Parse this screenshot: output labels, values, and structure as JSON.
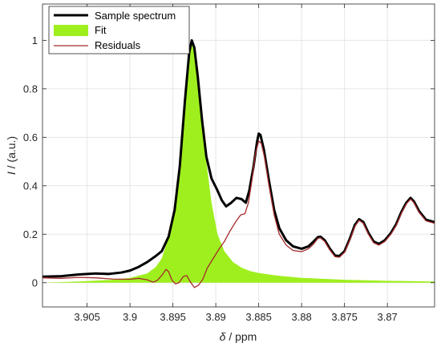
{
  "chart_data": {
    "type": "line",
    "title": "",
    "xlabel": {
      "symbol": "δ",
      "unit": " / ppm"
    },
    "ylabel": {
      "symbol": "I",
      "unit": " / (a.u.)"
    },
    "xlim": [
      3.9102,
      3.8645
    ],
    "ylim": [
      -0.1,
      1.15
    ],
    "x_reversed": true,
    "grid": true,
    "legend_position": "top-left",
    "x_ticks": [
      3.905,
      3.9,
      3.895,
      3.89,
      3.885,
      3.88,
      3.875,
      3.87
    ],
    "x_tick_labels": [
      "3.905",
      "3.9",
      "3.895",
      "3.89",
      "3.885",
      "3.88",
      "3.875",
      "3.87"
    ],
    "y_ticks": [
      0,
      0.2,
      0.4,
      0.6,
      0.8,
      1
    ],
    "y_tick_labels": [
      "0",
      "0.2",
      "0.4",
      "0.6",
      "0.8",
      "1"
    ],
    "series": [
      {
        "name": "Sample spectrum",
        "kind": "line",
        "color": "#000000",
        "points": [
          [
            3.9102,
            0.025
          ],
          [
            3.908,
            0.027
          ],
          [
            3.906,
            0.034
          ],
          [
            3.904,
            0.038
          ],
          [
            3.9025,
            0.036
          ],
          [
            3.901,
            0.042
          ],
          [
            3.9,
            0.05
          ],
          [
            3.899,
            0.065
          ],
          [
            3.898,
            0.085
          ],
          [
            3.897,
            0.11
          ],
          [
            3.8963,
            0.13
          ],
          [
            3.8955,
            0.19
          ],
          [
            3.8948,
            0.3
          ],
          [
            3.8942,
            0.48
          ],
          [
            3.8936,
            0.75
          ],
          [
            3.8931,
            0.95
          ],
          [
            3.8928,
            1.0
          ],
          [
            3.8925,
            0.97
          ],
          [
            3.8921,
            0.85
          ],
          [
            3.8916,
            0.67
          ],
          [
            3.8911,
            0.52
          ],
          [
            3.8905,
            0.43
          ],
          [
            3.8898,
            0.38
          ],
          [
            3.8893,
            0.34
          ],
          [
            3.8888,
            0.315
          ],
          [
            3.8882,
            0.33
          ],
          [
            3.8876,
            0.35
          ],
          [
            3.887,
            0.345
          ],
          [
            3.8865,
            0.33
          ],
          [
            3.8861,
            0.38
          ],
          [
            3.8856,
            0.48
          ],
          [
            3.8852,
            0.58
          ],
          [
            3.885,
            0.615
          ],
          [
            3.8848,
            0.61
          ],
          [
            3.8844,
            0.55
          ],
          [
            3.8838,
            0.42
          ],
          [
            3.8832,
            0.3
          ],
          [
            3.8826,
            0.225
          ],
          [
            3.8818,
            0.175
          ],
          [
            3.881,
            0.15
          ],
          [
            3.88,
            0.14
          ],
          [
            3.8792,
            0.15
          ],
          [
            3.8786,
            0.17
          ],
          [
            3.8781,
            0.188
          ],
          [
            3.8778,
            0.19
          ],
          [
            3.8773,
            0.175
          ],
          [
            3.8767,
            0.14
          ],
          [
            3.8761,
            0.112
          ],
          [
            3.8756,
            0.11
          ],
          [
            3.875,
            0.13
          ],
          [
            3.8744,
            0.18
          ],
          [
            3.8738,
            0.238
          ],
          [
            3.8733,
            0.262
          ],
          [
            3.8728,
            0.25
          ],
          [
            3.8722,
            0.205
          ],
          [
            3.8716,
            0.17
          ],
          [
            3.871,
            0.16
          ],
          [
            3.8703,
            0.175
          ],
          [
            3.8696,
            0.205
          ],
          [
            3.869,
            0.24
          ],
          [
            3.8684,
            0.29
          ],
          [
            3.8678,
            0.33
          ],
          [
            3.8673,
            0.35
          ],
          [
            3.8669,
            0.335
          ],
          [
            3.8663,
            0.295
          ],
          [
            3.8655,
            0.26
          ],
          [
            3.8645,
            0.25
          ]
        ]
      },
      {
        "name": "Fit",
        "kind": "area",
        "color": "#9fef1f",
        "points": [
          [
            3.9102,
            0.0
          ],
          [
            3.906,
            0.005
          ],
          [
            3.902,
            0.012
          ],
          [
            3.9,
            0.02
          ],
          [
            3.898,
            0.038
          ],
          [
            3.897,
            0.065
          ],
          [
            3.8963,
            0.1
          ],
          [
            3.8955,
            0.19
          ],
          [
            3.8948,
            0.3
          ],
          [
            3.8942,
            0.48
          ],
          [
            3.8936,
            0.75
          ],
          [
            3.8931,
            0.95
          ],
          [
            3.8928,
            1.0
          ],
          [
            3.8925,
            0.97
          ],
          [
            3.8921,
            0.85
          ],
          [
            3.8916,
            0.67
          ],
          [
            3.8911,
            0.5
          ],
          [
            3.8905,
            0.33
          ],
          [
            3.8898,
            0.2
          ],
          [
            3.889,
            0.13
          ],
          [
            3.888,
            0.085
          ],
          [
            3.887,
            0.062
          ],
          [
            3.886,
            0.048
          ],
          [
            3.885,
            0.04
          ],
          [
            3.883,
            0.03
          ],
          [
            3.88,
            0.02
          ],
          [
            3.875,
            0.012
          ],
          [
            3.87,
            0.008
          ],
          [
            3.8645,
            0.005
          ]
        ]
      },
      {
        "name": "Residuals",
        "kind": "line",
        "color": "#a52a2a",
        "points": [
          [
            3.9102,
            0.02
          ],
          [
            3.908,
            0.018
          ],
          [
            3.906,
            0.022
          ],
          [
            3.904,
            0.02
          ],
          [
            3.902,
            0.015
          ],
          [
            3.9,
            0.014
          ],
          [
            3.899,
            0.018
          ],
          [
            3.898,
            0.012
          ],
          [
            3.8973,
            0.002
          ],
          [
            3.8968,
            0.01
          ],
          [
            3.8963,
            0.03
          ],
          [
            3.8958,
            0.055
          ],
          [
            3.8955,
            0.045
          ],
          [
            3.8951,
            0.01
          ],
          [
            3.8947,
            -0.005
          ],
          [
            3.8943,
            0.0
          ],
          [
            3.8938,
            0.025
          ],
          [
            3.8934,
            0.03
          ],
          [
            3.893,
            0.005
          ],
          [
            3.8925,
            -0.02
          ],
          [
            3.892,
            -0.01
          ],
          [
            3.8915,
            0.015
          ],
          [
            3.891,
            0.06
          ],
          [
            3.8903,
            0.1
          ],
          [
            3.8896,
            0.14
          ],
          [
            3.889,
            0.17
          ],
          [
            3.8884,
            0.21
          ],
          [
            3.8877,
            0.25
          ],
          [
            3.8871,
            0.28
          ],
          [
            3.8866,
            0.285
          ],
          [
            3.8862,
            0.33
          ],
          [
            3.8858,
            0.42
          ],
          [
            3.8854,
            0.53
          ],
          [
            3.885,
            0.585
          ],
          [
            3.8847,
            0.575
          ],
          [
            3.8843,
            0.515
          ],
          [
            3.8838,
            0.4
          ],
          [
            3.8832,
            0.28
          ],
          [
            3.8826,
            0.2
          ],
          [
            3.8818,
            0.155
          ],
          [
            3.881,
            0.133
          ],
          [
            3.88,
            0.128
          ],
          [
            3.8792,
            0.14
          ],
          [
            3.8786,
            0.16
          ],
          [
            3.8781,
            0.183
          ],
          [
            3.8778,
            0.185
          ],
          [
            3.8773,
            0.17
          ],
          [
            3.8767,
            0.135
          ],
          [
            3.8761,
            0.107
          ],
          [
            3.8756,
            0.105
          ],
          [
            3.875,
            0.125
          ],
          [
            3.8744,
            0.175
          ],
          [
            3.8738,
            0.232
          ],
          [
            3.8733,
            0.258
          ],
          [
            3.8728,
            0.245
          ],
          [
            3.8722,
            0.2
          ],
          [
            3.8716,
            0.165
          ],
          [
            3.871,
            0.155
          ],
          [
            3.8703,
            0.17
          ],
          [
            3.8696,
            0.2
          ],
          [
            3.869,
            0.235
          ],
          [
            3.8684,
            0.285
          ],
          [
            3.8678,
            0.325
          ],
          [
            3.8673,
            0.345
          ],
          [
            3.8669,
            0.33
          ],
          [
            3.8663,
            0.29
          ],
          [
            3.8655,
            0.255
          ],
          [
            3.8645,
            0.245
          ]
        ]
      }
    ]
  }
}
